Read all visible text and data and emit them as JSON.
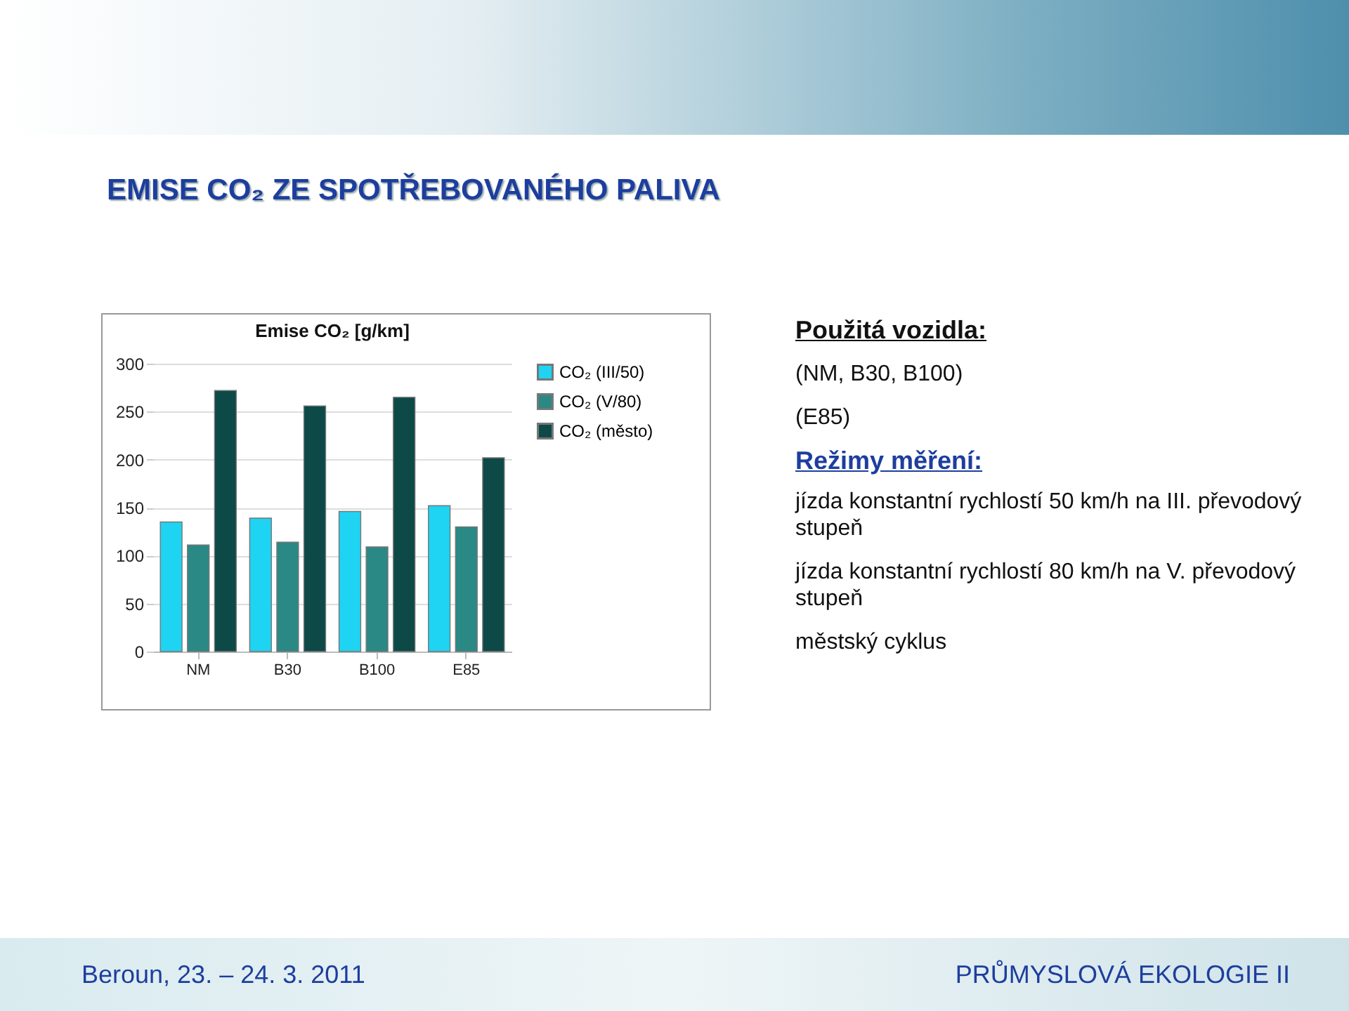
{
  "chart_data": {
    "type": "bar",
    "title": "EMISE CO₂ ZE SPOTŘEBOVANÉHO PALIVA",
    "subtitle": "Emise CO₂    [g/km]",
    "categories": [
      "NM",
      "B30",
      "B100",
      "E85"
    ],
    "series": [
      {
        "name": "CO₂ (III/50)",
        "color": "#1fd3f2",
        "values": [
          135,
          139,
          146,
          152
        ]
      },
      {
        "name": "CO₂ (V/80)",
        "color": "#2a8985",
        "values": [
          111,
          114,
          109,
          130
        ]
      },
      {
        "name": "CO₂ (město)",
        "color": "#0c4947",
        "values": [
          272,
          256,
          265,
          202
        ]
      }
    ],
    "ylim": [
      0,
      300
    ],
    "yticks": [
      0,
      50,
      100,
      150,
      200,
      250,
      300
    ],
    "grid": "y",
    "legend": "right",
    "annotations": [
      "Použitá vozidla:",
      "(NM, B30, B100)",
      "(E85)",
      "Režimy měření:",
      "jízda konstantní rychlostí 50 km/h na III. převodový stupeň",
      "jízda konstantní rychlostí 80 km/h na V. převodový stupeň",
      "městský cyklus",
      "Beroun, 23. – 24. 3. 2011",
      "PRŮMYSLOVÁ EKOLOGIE II"
    ]
  }
}
